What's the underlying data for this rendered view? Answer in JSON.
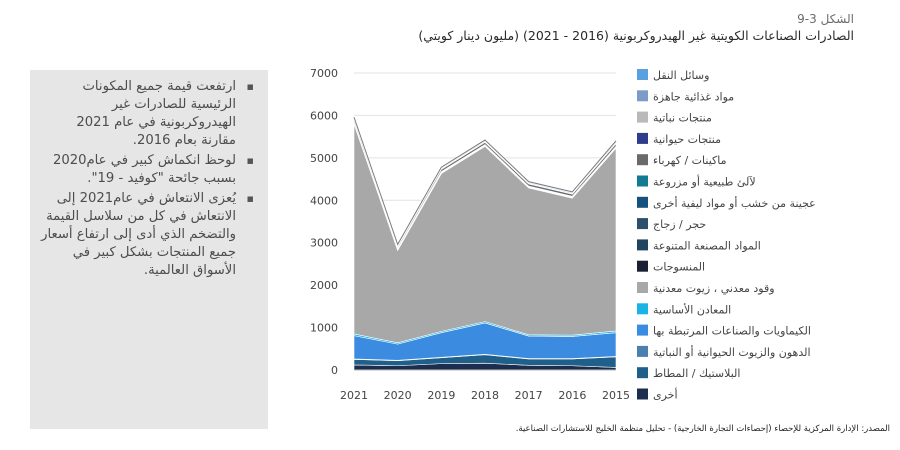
{
  "figure": {
    "label": "الشكل 3-9",
    "title": "الصادرات الصناعات الكويتية غير الهيدروكربونية (2016 - 2021) (مليون دينار كويتي)"
  },
  "bullets": [
    "ارتفعت قيمة جميع المكونات الرئيسية للصادرات غير الهيدروكربونية في عام 2021 مقارنة بعام 2016.",
    "لوحظ انكماش كبير في عام2020 بسبب جائحة \"كوفيد - 19\".",
    "يُعزى الانتعاش في عام2021 إلى الانتعاش في كل من سلاسل القيمة والتضخم الذي أدى إلى ارتفاع أسعار جميع المنتجات بشكل كبير في الأسواق العالمية."
  ],
  "source": "المصدر: الإدارة المركزية للإحصاء (إحصاءات التجارة الخارجية) - تحليل منظمة الخليج للاستشارات الصناعية.",
  "chart_data": {
    "type": "area",
    "stacked": true,
    "categories": [
      "2021",
      "2020",
      "2019",
      "2018",
      "2017",
      "2016",
      "2015"
    ],
    "ylim": [
      0,
      7000
    ],
    "yticks": [
      0,
      1000,
      2000,
      3000,
      4000,
      5000,
      6000,
      7000
    ],
    "grid": true,
    "legend_position": "right",
    "series": [
      {
        "name": "أخرى",
        "color": "#1c2d4f",
        "values": [
          120,
          100,
          150,
          160,
          110,
          100,
          60
        ]
      },
      {
        "name": "البلاستيك / المطاط",
        "color": "#1f5f8a",
        "values": [
          130,
          120,
          140,
          200,
          150,
          160,
          250
        ]
      },
      {
        "name": "الدهون والزيوت الحيوانية أو النباتية",
        "color": "#4a7fb0",
        "values": [
          10,
          10,
          10,
          10,
          10,
          10,
          10
        ]
      },
      {
        "name": "الكيماويات والصناعات المرتبطة بها",
        "color": "#3b8be0",
        "values": [
          550,
          380,
          580,
          740,
          530,
          520,
          560
        ]
      },
      {
        "name": "المعادن الأساسية",
        "color": "#19b4e6",
        "values": [
          40,
          30,
          30,
          30,
          30,
          30,
          40
        ]
      },
      {
        "name": "وقود معدني ، زيوت معدنية",
        "color": "#a8a8a8",
        "values": [
          4950,
          2180,
          3720,
          4130,
          3460,
          3230,
          4310
        ]
      },
      {
        "name": "المنسوجات",
        "color": "#1a1f33",
        "values": [
          5,
          5,
          5,
          5,
          5,
          5,
          5
        ]
      },
      {
        "name": "المواد المصنعة المتنوعة",
        "color": "#1f4560",
        "values": [
          10,
          10,
          10,
          10,
          10,
          10,
          10
        ]
      },
      {
        "name": "حجر / زجاج",
        "color": "#2c4f6e",
        "values": [
          10,
          10,
          10,
          10,
          10,
          10,
          10
        ]
      },
      {
        "name": "عجينة من خشب أو مواد ليفية أخرى",
        "color": "#14517f",
        "values": [
          10,
          10,
          10,
          10,
          10,
          10,
          10
        ]
      },
      {
        "name": "لآلئ طبيعية أو مزروعة",
        "color": "#127a93",
        "values": [
          10,
          10,
          10,
          10,
          10,
          10,
          10
        ]
      },
      {
        "name": "ماكينات / كهرباء",
        "color": "#6a6a6a",
        "values": [
          60,
          40,
          50,
          50,
          50,
          50,
          60
        ]
      },
      {
        "name": "منتجات حيوانية",
        "color": "#2e3c8c",
        "values": [
          10,
          10,
          10,
          10,
          10,
          10,
          10
        ]
      },
      {
        "name": "منتجات نباتية",
        "color": "#b9b9b9",
        "values": [
          5,
          5,
          5,
          5,
          5,
          5,
          5
        ]
      },
      {
        "name": "مواد غذائية جاهزة",
        "color": "#7c9cc7",
        "values": [
          20,
          20,
          20,
          20,
          20,
          20,
          30
        ]
      },
      {
        "name": "وسائل النقل",
        "color": "#5aa0e0",
        "values": [
          20,
          20,
          20,
          20,
          20,
          20,
          20
        ]
      }
    ]
  }
}
